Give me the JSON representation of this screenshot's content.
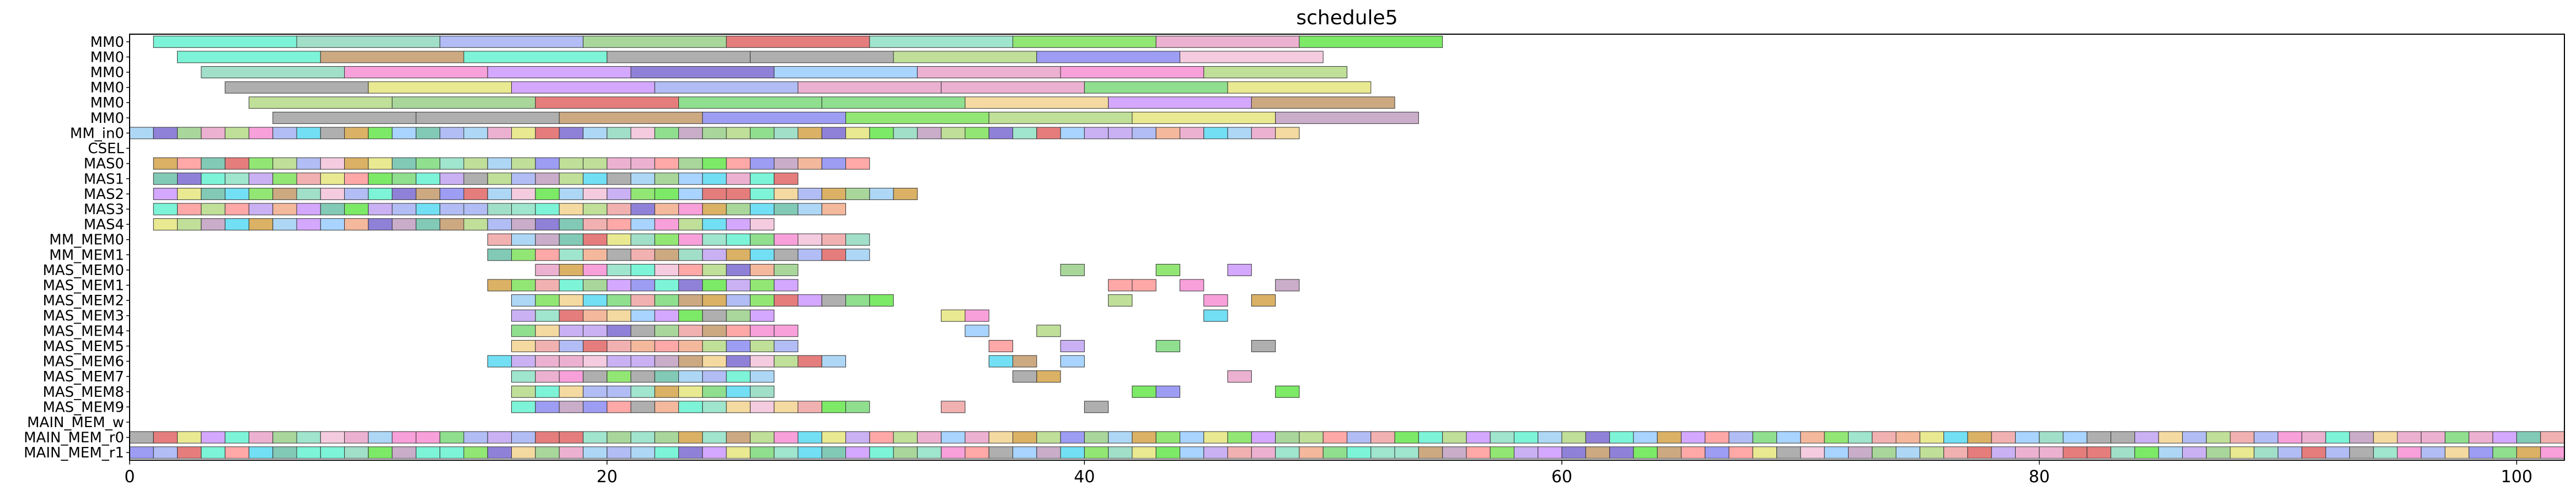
{
  "chart_data": {
    "type": "gantt",
    "title": "schedule5",
    "xlabel": "",
    "ylabel": "",
    "xlim": [
      0,
      102
    ],
    "x_ticks": [
      0,
      20,
      40,
      60,
      80,
      100
    ],
    "x_tick_labels": [
      "0",
      "20",
      "40",
      "60",
      "80",
      "100"
    ],
    "grid": false,
    "rows": [
      "MM0",
      "MM0",
      "MM0",
      "MM0",
      "MM0",
      "MM0",
      "MM_in0",
      "CSEL",
      "MAS0",
      "MAS1",
      "MAS2",
      "MAS3",
      "MAS4",
      "MM_MEM0",
      "MM_MEM1",
      "MAS_MEM0",
      "MAS_MEM1",
      "MAS_MEM2",
      "MAS_MEM3",
      "MAS_MEM4",
      "MAS_MEM5",
      "MAS_MEM6",
      "MAS_MEM7",
      "MAS_MEM8",
      "MAS_MEM9",
      "MAIN_MEM_w",
      "MAIN_MEM_r0",
      "MAIN_MEM_r1"
    ],
    "palette": [
      "#66f2d0",
      "#f2c2d9",
      "#a3b1f2",
      "#9ad08a",
      "#e06666",
      "#91d9c0",
      "#7fe35c",
      "#e9a3c9",
      "#66e64c",
      "#8fe0c4",
      "#c1a3f2",
      "#f0a3a3",
      "#d3a34a",
      "#b5d987",
      "#a0d0f5",
      "#f78fd3",
      "#7d6bd1",
      "#a1a1a1",
      "#f2d48f",
      "#6cc1a9",
      "#e5e57f",
      "#cc99ff",
      "#ff9999",
      "#99ccff",
      "#c49a6c",
      "#8c8cf2",
      "#59d9f2",
      "#f2ab8c",
      "#7bd97b",
      "#bf9fbf"
    ],
    "bars": [
      {
        "row": 0,
        "x": 1,
        "w": 6,
        "c": 0
      },
      {
        "row": 0,
        "x": 7,
        "w": 6,
        "c": 5
      },
      {
        "row": 0,
        "x": 13,
        "w": 6,
        "c": 2
      },
      {
        "row": 0,
        "x": 19,
        "w": 6,
        "c": 3
      },
      {
        "row": 0,
        "x": 25,
        "w": 6,
        "c": 4
      },
      {
        "row": 0,
        "x": 31,
        "w": 6,
        "c": 9
      },
      {
        "row": 0,
        "x": 37,
        "w": 6,
        "c": 6
      },
      {
        "row": 0,
        "x": 43,
        "w": 6,
        "c": 7
      },
      {
        "row": 0,
        "x": 49,
        "w": 6,
        "c": 8
      },
      {
        "row": 1,
        "x": 2,
        "w": 6,
        "c": 0
      },
      {
        "row": 1,
        "x": 8,
        "w": 6,
        "c": 24
      },
      {
        "row": 1,
        "x": 14,
        "w": 6,
        "c": 0
      },
      {
        "row": 1,
        "x": 20,
        "w": 6,
        "c": 17
      },
      {
        "row": 1,
        "x": 26,
        "w": 6,
        "c": 17
      },
      {
        "row": 1,
        "x": 32,
        "w": 6,
        "c": 13
      },
      {
        "row": 1,
        "x": 38,
        "w": 6,
        "c": 25
      },
      {
        "row": 1,
        "x": 44,
        "w": 6,
        "c": 1
      },
      {
        "row": 2,
        "x": 3,
        "w": 6,
        "c": 5
      },
      {
        "row": 2,
        "x": 9,
        "w": 6,
        "c": 15
      },
      {
        "row": 2,
        "x": 15,
        "w": 6,
        "c": 21
      },
      {
        "row": 2,
        "x": 21,
        "w": 6,
        "c": 16
      },
      {
        "row": 2,
        "x": 27,
        "w": 6,
        "c": 23
      },
      {
        "row": 2,
        "x": 33,
        "w": 6,
        "c": 7
      },
      {
        "row": 2,
        "x": 39,
        "w": 6,
        "c": 15
      },
      {
        "row": 2,
        "x": 45,
        "w": 6,
        "c": 13
      },
      {
        "row": 3,
        "x": 4,
        "w": 6,
        "c": 17
      },
      {
        "row": 3,
        "x": 10,
        "w": 6,
        "c": 20
      },
      {
        "row": 3,
        "x": 16,
        "w": 6,
        "c": 21
      },
      {
        "row": 3,
        "x": 22,
        "w": 6,
        "c": 2
      },
      {
        "row": 3,
        "x": 28,
        "w": 6,
        "c": 7
      },
      {
        "row": 3,
        "x": 34,
        "w": 6,
        "c": 7
      },
      {
        "row": 3,
        "x": 40,
        "w": 6,
        "c": 28
      },
      {
        "row": 3,
        "x": 46,
        "w": 6,
        "c": 20
      },
      {
        "row": 4,
        "x": 5,
        "w": 6,
        "c": 13
      },
      {
        "row": 4,
        "x": 11,
        "w": 6,
        "c": 3
      },
      {
        "row": 4,
        "x": 17,
        "w": 6,
        "c": 4
      },
      {
        "row": 4,
        "x": 23,
        "w": 6,
        "c": 28
      },
      {
        "row": 4,
        "x": 29,
        "w": 6,
        "c": 28
      },
      {
        "row": 4,
        "x": 35,
        "w": 6,
        "c": 18
      },
      {
        "row": 4,
        "x": 41,
        "w": 6,
        "c": 21
      },
      {
        "row": 4,
        "x": 47,
        "w": 6,
        "c": 24
      },
      {
        "row": 5,
        "x": 6,
        "w": 6,
        "c": 17
      },
      {
        "row": 5,
        "x": 12,
        "w": 6,
        "c": 17
      },
      {
        "row": 5,
        "x": 18,
        "w": 6,
        "c": 24
      },
      {
        "row": 5,
        "x": 24,
        "w": 6,
        "c": 25
      },
      {
        "row": 5,
        "x": 30,
        "w": 6,
        "c": 6
      },
      {
        "row": 5,
        "x": 36,
        "w": 6,
        "c": 13
      },
      {
        "row": 5,
        "x": 42,
        "w": 6,
        "c": 20
      },
      {
        "row": 5,
        "x": 48,
        "w": 6,
        "c": 29
      },
      {
        "row": 6,
        "x": 0,
        "w": 49,
        "c": -1
      },
      {
        "row": 8,
        "x": 1,
        "w": 30,
        "c": -1
      },
      {
        "row": 9,
        "x": 1,
        "w": 27,
        "c": -1
      },
      {
        "row": 10,
        "x": 1,
        "w": 32,
        "c": -1
      },
      {
        "row": 11,
        "x": 1,
        "w": 29,
        "c": -1
      },
      {
        "row": 12,
        "x": 1,
        "w": 26,
        "c": -1
      },
      {
        "row": 13,
        "x": 15,
        "w": 16,
        "c": -1
      },
      {
        "row": 14,
        "x": 15,
        "w": 16,
        "c": -1
      },
      {
        "row": 15,
        "x": 17,
        "w": 11,
        "c": -1
      },
      {
        "row": 15,
        "x": 39,
        "w": 1,
        "c": 3
      },
      {
        "row": 15,
        "x": 43,
        "w": 1,
        "c": 6
      },
      {
        "row": 15,
        "x": 46,
        "w": 1,
        "c": 21
      },
      {
        "row": 16,
        "x": 15,
        "w": 13,
        "c": -1
      },
      {
        "row": 16,
        "x": 41,
        "w": 1,
        "c": 22
      },
      {
        "row": 16,
        "x": 42,
        "w": 1,
        "c": 22
      },
      {
        "row": 16,
        "x": 44,
        "w": 1,
        "c": 15
      },
      {
        "row": 16,
        "x": 48,
        "w": 1,
        "c": 29
      },
      {
        "row": 17,
        "x": 16,
        "w": 16,
        "c": -1
      },
      {
        "row": 17,
        "x": 41,
        "w": 1,
        "c": 13
      },
      {
        "row": 17,
        "x": 45,
        "w": 1,
        "c": 15
      },
      {
        "row": 17,
        "x": 47,
        "w": 1,
        "c": 12
      },
      {
        "row": 18,
        "x": 16,
        "w": 11,
        "c": -1
      },
      {
        "row": 18,
        "x": 34,
        "w": 1,
        "c": 20
      },
      {
        "row": 18,
        "x": 35,
        "w": 1,
        "c": 15
      },
      {
        "row": 18,
        "x": 45,
        "w": 1,
        "c": 26
      },
      {
        "row": 19,
        "x": 16,
        "w": 12,
        "c": -1
      },
      {
        "row": 19,
        "x": 35,
        "w": 1,
        "c": 23
      },
      {
        "row": 19,
        "x": 38,
        "w": 1,
        "c": 13
      },
      {
        "row": 20,
        "x": 16,
        "w": 12,
        "c": -1
      },
      {
        "row": 20,
        "x": 36,
        "w": 1,
        "c": 22
      },
      {
        "row": 20,
        "x": 39,
        "w": 1,
        "c": 10
      },
      {
        "row": 20,
        "x": 43,
        "w": 1,
        "c": 28
      },
      {
        "row": 20,
        "x": 47,
        "w": 1,
        "c": 17
      },
      {
        "row": 21,
        "x": 15,
        "w": 15,
        "c": -1
      },
      {
        "row": 21,
        "x": 36,
        "w": 1,
        "c": 26
      },
      {
        "row": 21,
        "x": 37,
        "w": 1,
        "c": 24
      },
      {
        "row": 21,
        "x": 39,
        "w": 1,
        "c": 23
      },
      {
        "row": 22,
        "x": 16,
        "w": 11,
        "c": -1
      },
      {
        "row": 22,
        "x": 37,
        "w": 1,
        "c": 17
      },
      {
        "row": 22,
        "x": 38,
        "w": 1,
        "c": 12
      },
      {
        "row": 22,
        "x": 46,
        "w": 1,
        "c": 7
      },
      {
        "row": 23,
        "x": 16,
        "w": 11,
        "c": -1
      },
      {
        "row": 23,
        "x": 42,
        "w": 1,
        "c": 8
      },
      {
        "row": 23,
        "x": 43,
        "w": 1,
        "c": 25
      },
      {
        "row": 23,
        "x": 48,
        "w": 1,
        "c": 8
      },
      {
        "row": 24,
        "x": 16,
        "w": 15,
        "c": -1
      },
      {
        "row": 24,
        "x": 34,
        "w": 1,
        "c": 11
      },
      {
        "row": 24,
        "x": 40,
        "w": 1,
        "c": 17
      },
      {
        "row": 26,
        "x": 0,
        "w": 102,
        "c": -1
      },
      {
        "row": 27,
        "x": 0,
        "w": 102,
        "c": -1
      }
    ]
  }
}
